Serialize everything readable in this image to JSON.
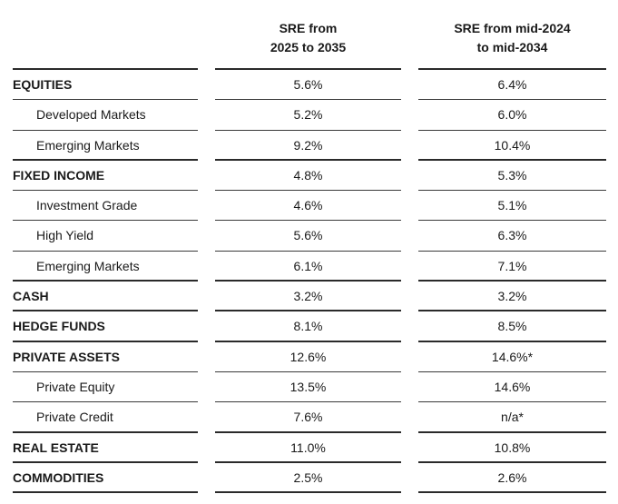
{
  "header": {
    "col1_line1": "SRE from",
    "col1_line2": "2025 to 2035",
    "col2_line1": "SRE from mid-2024",
    "col2_line2": "to mid-2034"
  },
  "rows": [
    {
      "label": "EQUITIES",
      "v1": "5.6%",
      "v2": "6.4%"
    },
    {
      "label": "Developed Markets",
      "v1": "5.2%",
      "v2": "6.0%"
    },
    {
      "label": "Emerging Markets",
      "v1": "9.2%",
      "v2": "10.4%"
    },
    {
      "label": "FIXED INCOME",
      "v1": "4.8%",
      "v2": "5.3%"
    },
    {
      "label": "Investment Grade",
      "v1": "4.6%",
      "v2": "5.1%"
    },
    {
      "label": "High Yield",
      "v1": "5.6%",
      "v2": "6.3%"
    },
    {
      "label": "Emerging Markets",
      "v1": "6.1%",
      "v2": "7.1%"
    },
    {
      "label": "CASH",
      "v1": "3.2%",
      "v2": "3.2%"
    },
    {
      "label": "HEDGE FUNDS",
      "v1": "8.1%",
      "v2": "8.5%"
    },
    {
      "label": "PRIVATE ASSETS",
      "v1": "12.6%",
      "v2": "14.6%*"
    },
    {
      "label": "Private Equity",
      "v1": "13.5%",
      "v2": "14.6%"
    },
    {
      "label": "Private Credit",
      "v1": "7.6%",
      "v2": "n/a*"
    },
    {
      "label": "REAL ESTATE",
      "v1": "11.0%",
      "v2": "10.8%"
    },
    {
      "label": "COMMODITIES",
      "v1": "2.5%",
      "v2": "2.6%"
    }
  ]
}
